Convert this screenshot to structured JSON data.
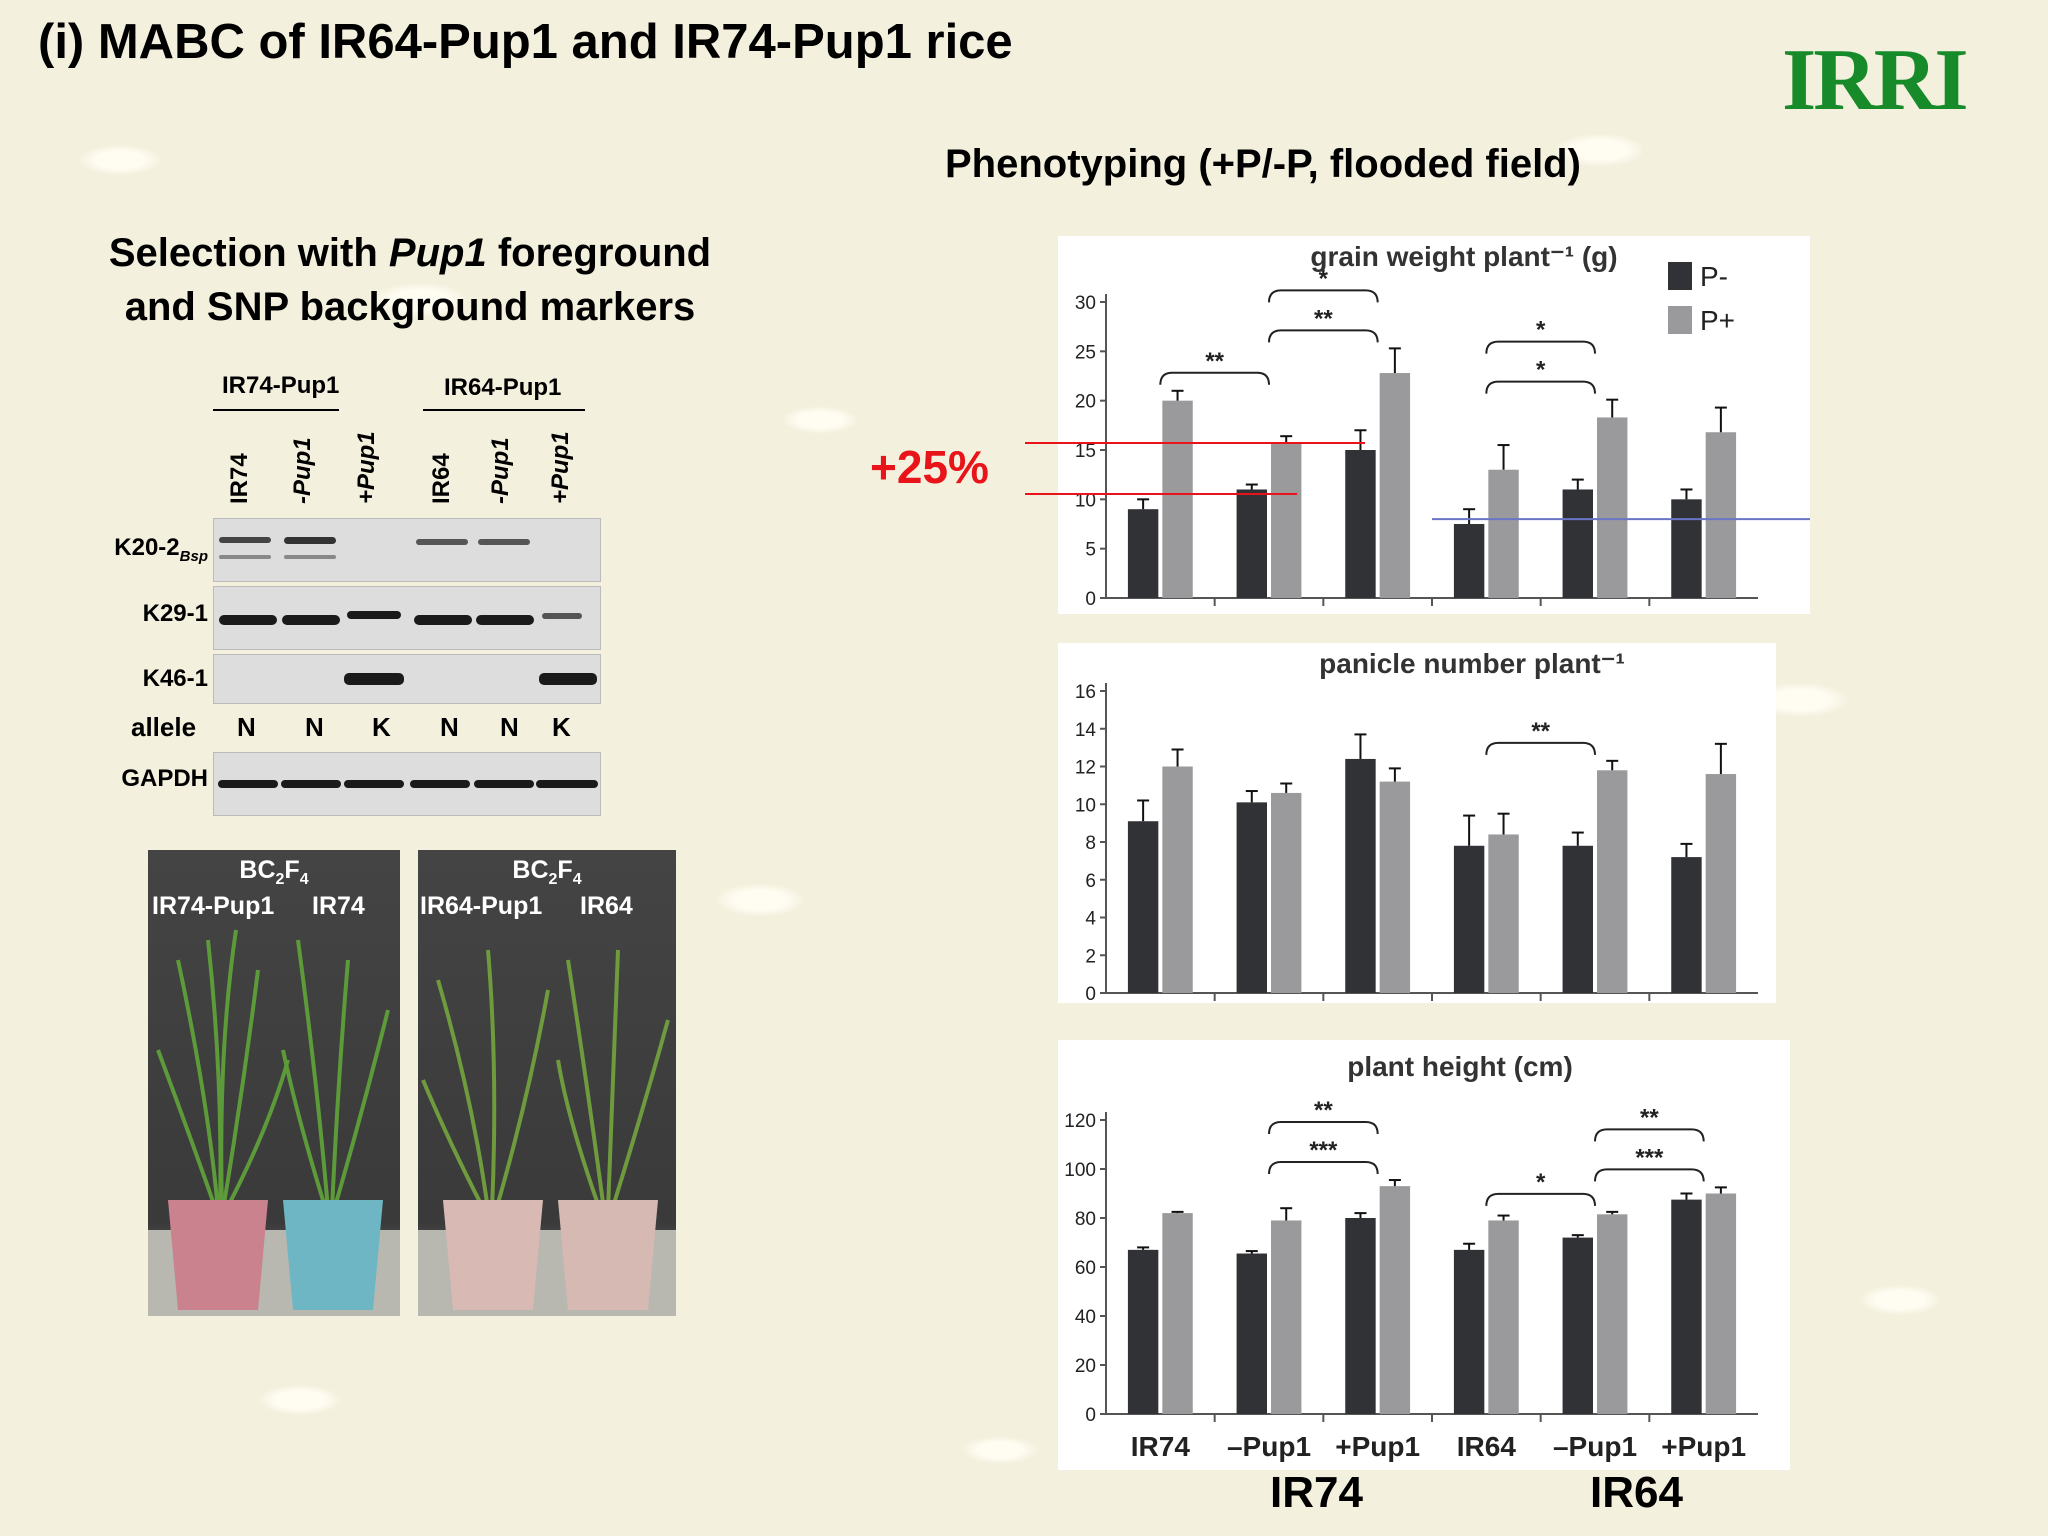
{
  "slide": {
    "title": "(i) MABC of IR64-Pup1 and IR74-Pup1 rice",
    "logo": "IRRI",
    "phenotyping_title": "Phenotyping (+P/-P, flooded field)",
    "selection_line1_pre": "Selection with ",
    "selection_line1_italic": "Pup1",
    "selection_line1_post": " foreground",
    "selection_line2": "and SNP background markers",
    "annotation_pct": "+25%",
    "group_labels": [
      "IR74",
      "IR64"
    ],
    "colors": {
      "p_minus": "#303236",
      "p_plus": "#9a9a9c",
      "red_line": "#e8141a",
      "blue_line": "#6a75c6",
      "logo": "#178a2a"
    }
  },
  "gel": {
    "group1": "IR74-Pup1",
    "group2": "IR64-Pup1",
    "lanes": [
      "IR74",
      "-Pup1",
      "+Pup1",
      "IR64",
      "-Pup1",
      "+Pup1"
    ],
    "rows": [
      {
        "label": "K20-2",
        "sub": "Bsp"
      },
      {
        "label": "K29-1",
        "sub": ""
      },
      {
        "label": "K46-1",
        "sub": ""
      }
    ],
    "allele_label": "allele",
    "alleles": [
      "N",
      "N",
      "K",
      "N",
      "N",
      "K"
    ],
    "gapdh_label": "GAPDH"
  },
  "photos": [
    {
      "gen": "BC",
      "sub1": "2",
      "F": "F",
      "sub2": "4",
      "left": "IR74-Pup1",
      "right": "IR74"
    },
    {
      "gen": "BC",
      "sub1": "2",
      "F": "F",
      "sub2": "4",
      "left": "IR64-Pup1",
      "right": "IR64"
    }
  ],
  "chart_data": [
    {
      "type": "bar",
      "title": "grain weight plant⁻¹ (g)",
      "categories": [
        "IR74",
        "–Pup1",
        "+Pup1",
        "IR64",
        "–Pup1",
        "+Pup1"
      ],
      "series": [
        {
          "name": "P-",
          "values": [
            9,
            11,
            15,
            7.5,
            11,
            10
          ],
          "errors": [
            1,
            0.5,
            2,
            1.5,
            1,
            1
          ]
        },
        {
          "name": "P+",
          "values": [
            20,
            15.8,
            22.8,
            13,
            18.3,
            16.8
          ],
          "errors": [
            1,
            0.6,
            2.5,
            2.5,
            1.8,
            2.5
          ]
        }
      ],
      "ylim": [
        0,
        30
      ],
      "yticks": [
        0,
        5,
        10,
        15,
        20,
        25,
        30
      ],
      "legend": "top-right",
      "significance": [
        {
          "from": 0,
          "to": 1,
          "label": "**"
        },
        {
          "from": 1,
          "to": 2,
          "label": "**"
        },
        {
          "from": 1,
          "to": 2,
          "label": "*"
        },
        {
          "from": 3,
          "to": 4,
          "label": "*"
        },
        {
          "from": 3,
          "to": 4,
          "label": "*"
        }
      ]
    },
    {
      "type": "bar",
      "title": "panicle number plant⁻¹",
      "categories": [
        "IR74",
        "–Pup1",
        "+Pup1",
        "IR64",
        "–Pup1",
        "+Pup1"
      ],
      "series": [
        {
          "name": "P-",
          "values": [
            9.1,
            10.1,
            12.4,
            7.8,
            7.8,
            7.2
          ],
          "errors": [
            1.1,
            0.6,
            1.3,
            1.6,
            0.7,
            0.7
          ]
        },
        {
          "name": "P+",
          "values": [
            12,
            10.6,
            11.2,
            8.4,
            11.8,
            11.6
          ],
          "errors": [
            0.9,
            0.5,
            0.7,
            1.1,
            0.5,
            1.6
          ]
        }
      ],
      "ylim": [
        0,
        16
      ],
      "yticks": [
        0,
        2,
        4,
        6,
        8,
        10,
        12,
        14,
        16
      ],
      "significance": [
        {
          "from": 3,
          "to": 4,
          "label": "**"
        }
      ]
    },
    {
      "type": "bar",
      "title": "plant height (cm)",
      "categories": [
        "IR74",
        "–Pup1",
        "+Pup1",
        "IR64",
        "–Pup1",
        "+Pup1"
      ],
      "series": [
        {
          "name": "P-",
          "values": [
            67,
            65.5,
            80,
            67,
            72,
            87.5
          ],
          "errors": [
            1,
            1,
            2,
            2.5,
            1,
            2.5
          ]
        },
        {
          "name": "P+",
          "values": [
            82,
            79,
            93,
            79,
            81.5,
            90
          ],
          "errors": [
            0.5,
            5,
            2.5,
            2,
            1,
            2.5
          ]
        }
      ],
      "ylim": [
        0,
        120
      ],
      "yticks": [
        0,
        20,
        40,
        60,
        80,
        100,
        120
      ],
      "significance": [
        {
          "from": 1,
          "to": 2,
          "label": "***"
        },
        {
          "from": 1,
          "to": 2,
          "label": "**"
        },
        {
          "from": 3,
          "to": 4,
          "label": "*"
        },
        {
          "from": 4,
          "to": 5,
          "label": "***"
        },
        {
          "from": 4,
          "to": 5,
          "label": "**"
        }
      ]
    }
  ]
}
